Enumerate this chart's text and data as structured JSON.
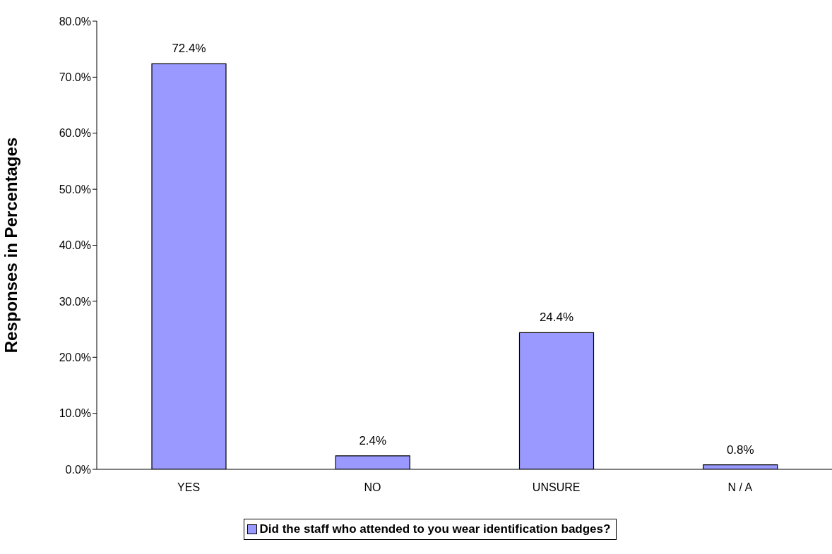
{
  "chart_data": {
    "type": "bar",
    "ylabel": "Responses in Percentages",
    "categories": [
      "YES",
      "NO",
      "UNSURE",
      "N / A"
    ],
    "series": [
      {
        "name": "Did the staff who attended to you wear identification badges?",
        "color": "#9999ff",
        "values": [
          72.4,
          2.4,
          24.4,
          0.8
        ],
        "value_labels": [
          "72.4%",
          "2.4%",
          "24.4%",
          "0.8%"
        ]
      }
    ],
    "ylim": [
      0,
      80
    ],
    "yticks": [
      {
        "value": 0,
        "label": "0.0%"
      },
      {
        "value": 10,
        "label": "10.0%"
      },
      {
        "value": 20,
        "label": "20.0%"
      },
      {
        "value": 30,
        "label": "30.0%"
      },
      {
        "value": 40,
        "label": "40.0%"
      },
      {
        "value": 50,
        "label": "50.0%"
      },
      {
        "value": 60,
        "label": "60.0%"
      },
      {
        "value": 70,
        "label": "70.0%"
      },
      {
        "value": 80,
        "label": "80.0%"
      }
    ],
    "grid": false,
    "legend": "bottom"
  }
}
